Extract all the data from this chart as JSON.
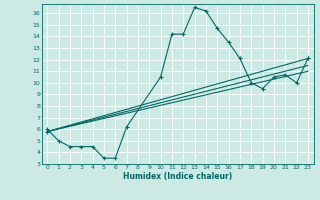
{
  "xlabel": "Humidex (Indice chaleur)",
  "xlim": [
    -0.5,
    23.5
  ],
  "ylim": [
    3,
    16.8
  ],
  "xticks": [
    0,
    1,
    2,
    3,
    4,
    5,
    6,
    7,
    8,
    9,
    10,
    11,
    12,
    13,
    14,
    15,
    16,
    17,
    18,
    19,
    20,
    21,
    22,
    23
  ],
  "yticks": [
    3,
    4,
    5,
    6,
    7,
    8,
    9,
    10,
    11,
    12,
    13,
    14,
    15,
    16
  ],
  "background_color": "#cce9e4",
  "grid_color": "#ffffff",
  "line_color": "#006868",
  "curve_x": [
    0,
    1,
    2,
    3,
    4,
    5,
    6,
    7,
    10,
    11,
    12,
    13,
    14,
    15,
    16,
    17,
    18,
    19,
    20,
    21,
    22,
    23
  ],
  "curve_y": [
    6.0,
    5.0,
    4.5,
    4.5,
    4.5,
    3.5,
    3.5,
    6.2,
    10.5,
    14.2,
    14.2,
    16.5,
    16.2,
    14.7,
    13.5,
    12.1,
    10.0,
    9.5,
    10.5,
    10.7,
    10.0,
    12.1
  ],
  "line2_x": [
    0,
    23
  ],
  "line2_y": [
    5.8,
    12.1
  ],
  "line3_x": [
    0,
    23
  ],
  "line3_y": [
    5.8,
    11.5
  ],
  "line4_x": [
    0,
    23
  ],
  "line4_y": [
    5.8,
    11.0
  ],
  "markers_line2_x": [
    0,
    23
  ],
  "markers_line2_y": [
    5.8,
    12.1
  ]
}
